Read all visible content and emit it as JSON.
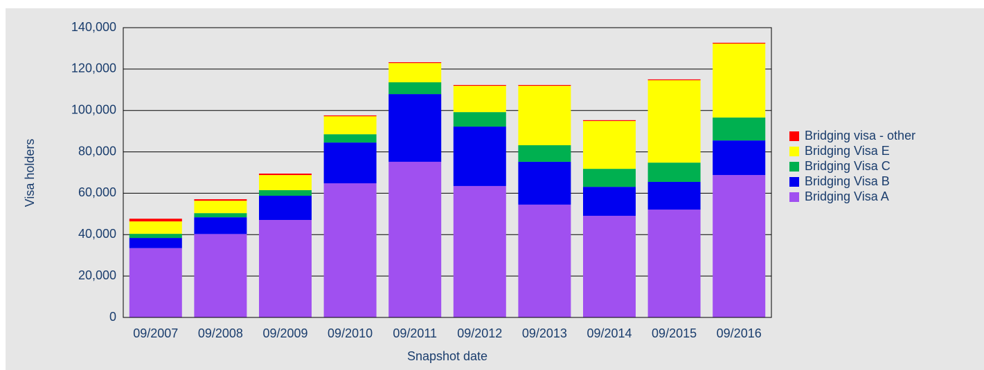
{
  "chart_data": {
    "type": "stacked-bar",
    "xlabel": "Snapshot date",
    "ylabel": "Visa holders",
    "categories": [
      "09/2007",
      "09/2008",
      "09/2009",
      "09/2010",
      "09/2011",
      "09/2012",
      "09/2013",
      "09/2014",
      "09/2015",
      "09/2016"
    ],
    "series": [
      {
        "name": "Bridging Visa A",
        "color": "#a050f0",
        "values": [
          33500,
          40300,
          47100,
          64800,
          75200,
          63500,
          54500,
          49100,
          52100,
          68800
        ]
      },
      {
        "name": "Bridging Visa B",
        "color": "#0000f0",
        "values": [
          4900,
          8100,
          11700,
          19700,
          32700,
          28700,
          20700,
          14000,
          13400,
          16700
        ]
      },
      {
        "name": "Bridging Visa C",
        "color": "#00b050",
        "values": [
          2000,
          2000,
          2700,
          4000,
          5700,
          7000,
          8000,
          8700,
          9300,
          11100
        ]
      },
      {
        "name": "Bridging Visa E",
        "color": "#ffff00",
        "values": [
          6000,
          6000,
          7300,
          8700,
          9300,
          12700,
          28700,
          23100,
          39800,
          35700
        ]
      },
      {
        "name": "Bridging visa - other",
        "color": "#ff0000",
        "values": [
          1300,
          700,
          700,
          400,
          400,
          400,
          400,
          400,
          400,
          400
        ]
      }
    ],
    "ylim": [
      0,
      140000
    ],
    "yticks": [
      0,
      {
        "value": 20000,
        "label": "20,000"
      },
      {
        "value": 40000,
        "label": "40,000"
      },
      {
        "value": 60000,
        "label": "60,000"
      },
      {
        "value": 80000,
        "label": "80,000"
      },
      {
        "value": 100000,
        "label": "100,000"
      },
      {
        "value": 120000,
        "label": "120,000"
      },
      {
        "value": 140000,
        "label": "140,000"
      }
    ],
    "grid": true,
    "legend": "right"
  }
}
